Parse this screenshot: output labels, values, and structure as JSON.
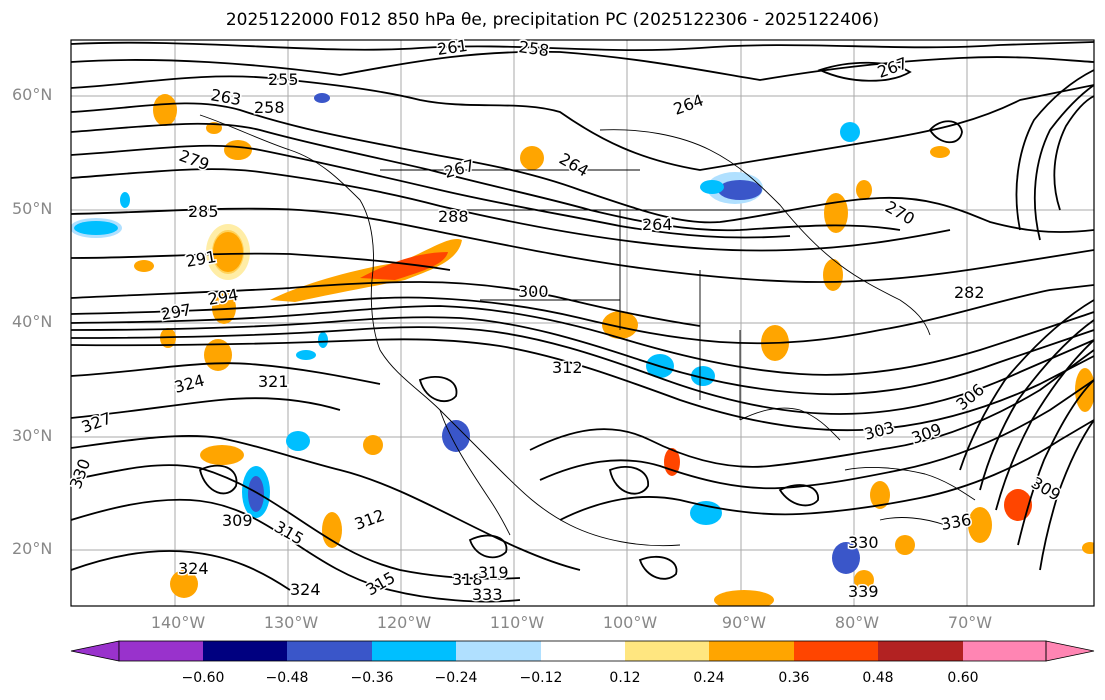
{
  "title": "2025122000 F012 850 hPa θe, precipitation PC (2025122306 - 2025122406)",
  "lat_labels": [
    "60°N",
    "50°N",
    "40°N",
    "30°N",
    "20°N"
  ],
  "lon_labels": [
    "140°W",
    "130°W",
    "120°W",
    "110°W",
    "100°W",
    "90°W",
    "80°W",
    "70°W"
  ],
  "colorbar": {
    "tick_labels": [
      "−0.60",
      "−0.48",
      "−0.36",
      "−0.24",
      "−0.12",
      "0.12",
      "0.24",
      "0.36",
      "0.48",
      "0.60"
    ],
    "colors": [
      "#9932cc",
      "#000080",
      "#3a56c9",
      "#00bfff",
      "#b0e0ff",
      "#ffffff",
      "#ffe680",
      "#ffa500",
      "#ff4500",
      "#b22222",
      "#ff85b3"
    ]
  },
  "contour_labels": [
    "261",
    "258",
    "255",
    "263",
    "258",
    "279",
    "264",
    "267",
    "285",
    "288",
    "264",
    "291",
    "294",
    "300",
    "297",
    "312",
    "324",
    "321",
    "327",
    "330",
    "309",
    "315",
    "312",
    "324",
    "324",
    "315",
    "318",
    "319",
    "333",
    "303",
    "309",
    "306",
    "270",
    "282",
    "336",
    "330",
    "339",
    "309",
    "267",
    "264"
  ]
}
